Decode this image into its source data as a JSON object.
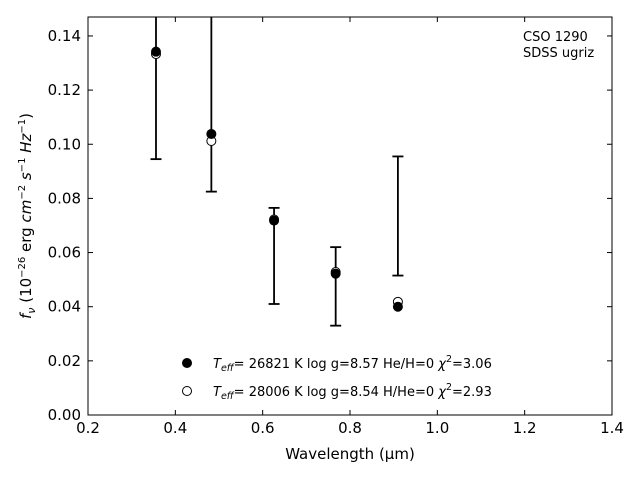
{
  "chart_data": {
    "type": "scatter",
    "title": "",
    "xlabel": "Wavelength (μm)",
    "ylabel": "f_ν (10^-26 erg cm^-2 s^-1 Hz^-1)",
    "xlim": [
      0.2,
      1.4
    ],
    "ylim": [
      0.0,
      0.147
    ],
    "x_ticks": [
      0.2,
      0.4,
      0.6,
      0.8,
      1.0,
      1.2,
      1.4
    ],
    "x_tick_labels": [
      "0.2",
      "0.4",
      "0.6",
      "0.8",
      "1.0",
      "1.2",
      "1.4"
    ],
    "y_ticks": [
      0.0,
      0.02,
      0.04,
      0.06,
      0.08,
      0.1,
      0.12,
      0.14
    ],
    "y_tick_labels": [
      "0.00",
      "0.02",
      "0.04",
      "0.06",
      "0.08",
      "0.10",
      "0.12",
      "0.14"
    ],
    "grid": false,
    "annotation": [
      "CSO 1290",
      "SDSS ugriz"
    ],
    "observed": {
      "x": [
        0.3557,
        0.4825,
        0.6261,
        0.7672,
        0.9097
      ],
      "y": [
        0.1335,
        0.1035,
        0.072,
        0.052,
        0.0417
      ],
      "yerr_low": [
        0.0945,
        0.0825,
        0.041,
        0.033,
        0.0515
      ],
      "yerr_high": [
        0.147,
        0.147,
        0.0765,
        0.062,
        0.0955
      ]
    },
    "series": [
      {
        "name": "T_eff= 26821 K  log g=8.57  He/H=0  χ²=3.06",
        "marker": "filled-circle",
        "color": "#000000",
        "x": [
          0.3557,
          0.4825,
          0.6261,
          0.7672,
          0.9097
        ],
        "y": [
          0.1342,
          0.1038,
          0.0718,
          0.0522,
          0.04
        ]
      },
      {
        "name": "T_eff= 28006 K  log g=8.54  H/He=0  χ²=2.93",
        "marker": "open-circle",
        "color": "#000000",
        "x": [
          0.3557,
          0.4825,
          0.6261,
          0.7672,
          0.9097
        ],
        "y": [
          0.1333,
          0.1012,
          0.0722,
          0.0528,
          0.0418
        ]
      }
    ],
    "legend": {
      "placement": "lower-center",
      "entries": [
        {
          "symbol": "filled-circle",
          "teff": "26821 K",
          "logg": "log g=8.57",
          "comp": "He/H=0",
          "chi": "=3.06"
        },
        {
          "symbol": "open-circle",
          "teff": "28006 K",
          "logg": "log g=8.54",
          "comp": "H/He=0",
          "chi": "=2.93"
        }
      ]
    }
  }
}
